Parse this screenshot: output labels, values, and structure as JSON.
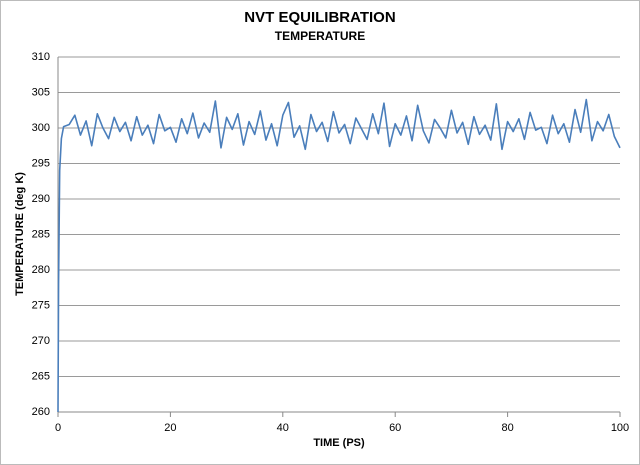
{
  "chart_data": {
    "type": "line",
    "title": "NVT EQUILIBRATION",
    "subtitle": "TEMPERATURE",
    "x_label": "TIME (PS)",
    "y_label": "TEMPERATURE  (deg K)",
    "xlim": [
      0,
      100
    ],
    "xticks": [
      0,
      20,
      40,
      60,
      80,
      100
    ],
    "ylim": [
      260,
      310
    ],
    "yticks": [
      260,
      265,
      270,
      275,
      280,
      285,
      290,
      295,
      300,
      305,
      310
    ],
    "grid": true,
    "x": [
      0,
      0.1,
      0.3,
      0.6,
      1,
      2,
      3,
      4,
      5,
      6,
      7,
      8,
      9,
      10,
      11,
      12,
      13,
      14,
      15,
      16,
      17,
      18,
      19,
      20,
      21,
      22,
      23,
      24,
      25,
      26,
      27,
      28,
      29,
      30,
      31,
      32,
      33,
      34,
      35,
      36,
      37,
      38,
      39,
      40,
      41,
      42,
      43,
      44,
      45,
      46,
      47,
      48,
      49,
      50,
      51,
      52,
      53,
      54,
      55,
      56,
      57,
      58,
      59,
      60,
      61,
      62,
      63,
      64,
      65,
      66,
      67,
      68,
      69,
      70,
      71,
      72,
      73,
      74,
      75,
      76,
      77,
      78,
      79,
      80,
      81,
      82,
      83,
      84,
      85,
      86,
      87,
      88,
      89,
      90,
      91,
      92,
      93,
      94,
      95,
      96,
      97,
      98,
      99,
      100
    ],
    "series": [
      {
        "name": "TEMPERATURE",
        "color": "#4a7ebb",
        "values": [
          260,
          278,
          294,
          298.5,
          300.2,
          300.5,
          301.8,
          299,
          301,
          297.5,
          302,
          300,
          298.5,
          301.5,
          299.5,
          300.8,
          298.2,
          301.6,
          299,
          300.4,
          297.8,
          301.9,
          299.6,
          300.1,
          298,
          301.3,
          299.2,
          302.1,
          298.6,
          300.7,
          299.4,
          303.8,
          297.2,
          301.5,
          299.8,
          302,
          297.6,
          300.9,
          299.1,
          302.4,
          298.3,
          300.6,
          297.5,
          301.8,
          303.6,
          298.7,
          300.3,
          297,
          301.9,
          299.5,
          300.8,
          298.1,
          302.3,
          299.3,
          300.5,
          297.8,
          301.4,
          299.9,
          298.4,
          302,
          299.2,
          303.5,
          297.4,
          300.6,
          299,
          301.7,
          298.2,
          303.2,
          299.6,
          297.9,
          301.2,
          300,
          298.6,
          302.5,
          299.3,
          300.8,
          297.7,
          301.6,
          299.1,
          300.4,
          298.3,
          303.4,
          297,
          300.9,
          299.5,
          301.3,
          298.4,
          302.2,
          299.7,
          300.1,
          297.8,
          301.8,
          299.2,
          300.6,
          298,
          302.6,
          299.4,
          304,
          298.2,
          300.9,
          299.6,
          301.9,
          298.8,
          297.2
        ]
      }
    ]
  }
}
